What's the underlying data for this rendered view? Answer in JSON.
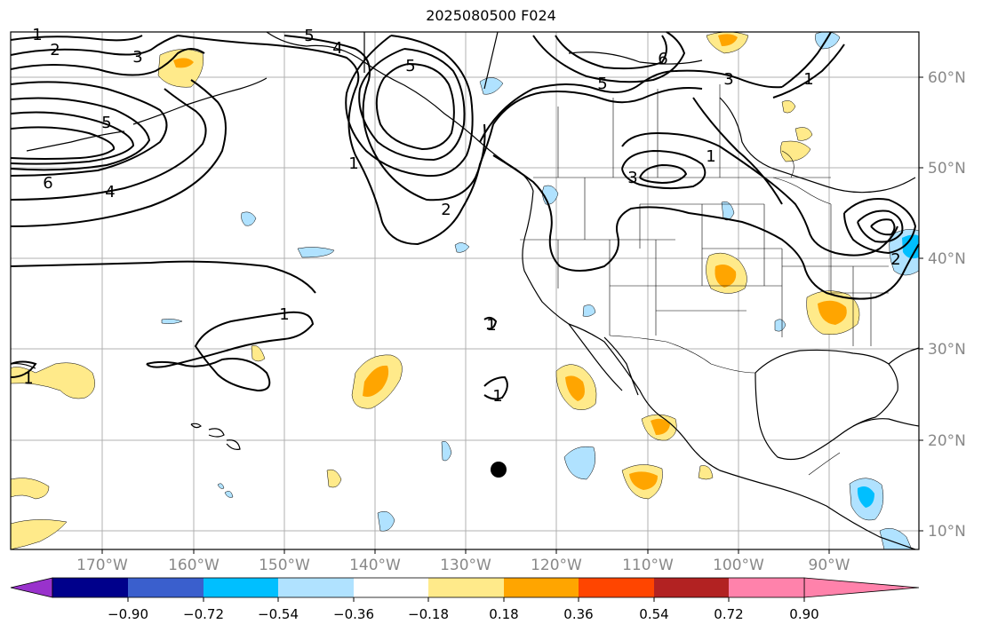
{
  "title": "2025080500 F024",
  "lon_labels": [
    "170°W",
    "160°W",
    "150°W",
    "140°W",
    "130°W",
    "120°W",
    "110°W",
    "100°W",
    "90°W"
  ],
  "lat_labels": [
    "60°N",
    "50°N",
    "40°N",
    "30°N",
    "20°N",
    "10°N"
  ],
  "contour_labels": [
    "1",
    "2",
    "3",
    "5",
    "4",
    "5",
    "6",
    "4",
    "5",
    "2",
    "1",
    "5",
    "6",
    "3",
    "1",
    "1",
    "3",
    "2",
    "1",
    "1",
    "1",
    "1"
  ],
  "colorbar": {
    "ticks": [
      "−0.90",
      "−0.72",
      "−0.54",
      "−0.36",
      "−0.18",
      "0.18",
      "0.36",
      "0.54",
      "0.72",
      "0.90"
    ],
    "colors": [
      "#9932cc",
      "#00008b",
      "#3a5fcd",
      "#00bfff",
      "#b0e2ff",
      "#ffffff",
      "#ffea8a",
      "#ffa500",
      "#ff4500",
      "#b22222",
      "#ff82ab"
    ]
  },
  "colors": {
    "grid": "#b0b0b0",
    "contour": "#000000",
    "coast": "#000000",
    "tick_label": "#888888"
  }
}
